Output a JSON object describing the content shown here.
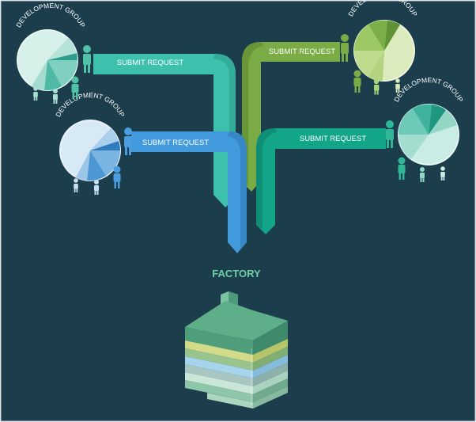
{
  "factory": {
    "title": "FACTORY"
  },
  "groups": [
    {
      "label": "DEVELOPMENT GROUP",
      "request": "SUBMIT REQUEST",
      "theme": "teal",
      "colors": {
        "ribbon": "#3ec1ac",
        "ribbon_dark": "#2a9c8a",
        "pie_light": "#d7f0ea",
        "pie": [
          "#c9ece4",
          "#b5e3d8",
          "#7fd0c0",
          "#4fb9a6",
          "#2e9f8c",
          "#a4ddd0"
        ]
      }
    },
    {
      "label": "DEVELOPMENT GROUP",
      "request": "SUBMIT REQUEST",
      "theme": "blue",
      "colors": {
        "ribbon": "#4299db",
        "ribbon_dark": "#2f79b5",
        "pie_light": "#d8e9f6",
        "pie": [
          "#c7e0f3",
          "#aacfec",
          "#7ab5e1",
          "#4d98d3",
          "#2f7dbd",
          "#9cc6e8"
        ]
      }
    },
    {
      "label": "DEVELOPMENT GROUP",
      "request": "SUBMIT REQUEST",
      "theme": "green",
      "colors": {
        "ribbon": "#7aab45",
        "ribbon_dark": "#5d8a31",
        "pie_light": "#dcebbd",
        "pie": [
          "#d2e6ad",
          "#bfdc8e",
          "#9cc964",
          "#7cb047",
          "#5f9234",
          "#b3d37e"
        ]
      }
    },
    {
      "label": "DEVELOPMENT GROUP",
      "request": "SUBMIT REQUEST",
      "theme": "emerald",
      "colors": {
        "ribbon": "#12a587",
        "ribbon_dark": "#0c8169",
        "pie_light": "#c9ede5",
        "pie": [
          "#bfe8de",
          "#a3ddd0",
          "#6ecab8",
          "#3fb39c",
          "#1f977f",
          "#93d6c6"
        ]
      }
    }
  ],
  "colors": {
    "background": "#1b3d4c",
    "person_light": "#a8e0d3",
    "building_top": "#5fae8a"
  }
}
